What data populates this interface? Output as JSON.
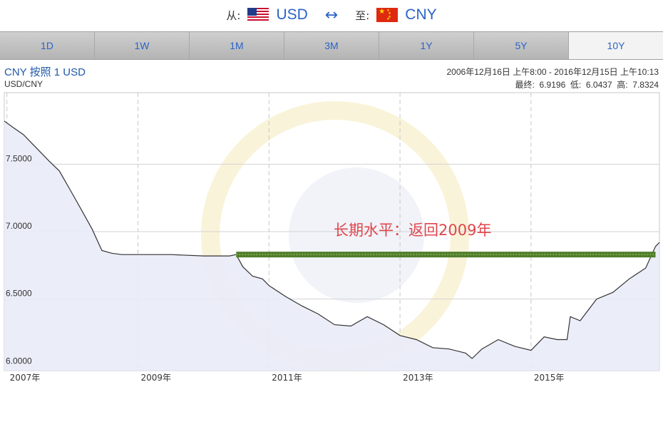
{
  "header": {
    "from_label": "从:",
    "from_currency": "USD",
    "to_label": "至:",
    "to_currency": "CNY"
  },
  "tabs": [
    "1D",
    "1W",
    "1M",
    "3M",
    "1Y",
    "5Y",
    "10Y"
  ],
  "active_tab": "10Y",
  "chart_header": {
    "title": "CNY 按照 1 USD",
    "pair": "USD/CNY",
    "date_range": "2006年12月16日 上午8:00 - 2016年12月15日 上午10:13",
    "stats": "最终:  6.9196  低:  6.0437  高:  7.8324"
  },
  "annotation": "长期水平：返回2009年",
  "colors": {
    "accent": "#2a63c7",
    "line": "#333333",
    "fill": "#e9ebf7",
    "annotation": "#e0454b",
    "level_band": "#4f7d2a"
  },
  "chart_data": {
    "type": "area",
    "title": "CNY 按照 1 USD",
    "xlabel": "",
    "ylabel": "",
    "xlim": [
      2006.96,
      2016.96
    ],
    "ylim": [
      5.97,
      8.03
    ],
    "y_ticks": [
      "7.5000",
      "7.0000",
      "6.5000",
      "6.0000"
    ],
    "x_ticks": [
      "2007年",
      "2009年",
      "2011年",
      "2013年",
      "2015年"
    ],
    "grid": true,
    "reference_line": {
      "value": 6.83,
      "from_x": 2010.5,
      "to_x": 2016.9
    },
    "series": [
      {
        "x": [
          2006.96,
          2007.1,
          2007.25,
          2007.45,
          2007.65,
          2007.8,
          2008.0,
          2008.15,
          2008.3,
          2008.45,
          2008.6,
          2008.75,
          2009.0,
          2009.5,
          2010.0,
          2010.4,
          2010.5,
          2010.6,
          2010.75,
          2010.9,
          2011.0,
          2011.25,
          2011.5,
          2011.75,
          2012.0,
          2012.25,
          2012.5,
          2012.75,
          2013.0,
          2013.25,
          2013.5,
          2013.75,
          2014.0,
          2014.1,
          2014.25,
          2014.5,
          2014.75,
          2015.0,
          2015.2,
          2015.4,
          2015.55,
          2015.6,
          2015.75,
          2016.0,
          2016.25,
          2016.5,
          2016.75,
          2016.9,
          2016.96
        ],
        "y": [
          7.82,
          7.77,
          7.72,
          7.62,
          7.52,
          7.45,
          7.28,
          7.15,
          7.02,
          6.86,
          6.84,
          6.83,
          6.83,
          6.83,
          6.82,
          6.82,
          6.83,
          6.74,
          6.67,
          6.65,
          6.6,
          6.52,
          6.45,
          6.39,
          6.31,
          6.3,
          6.37,
          6.31,
          6.23,
          6.2,
          6.14,
          6.13,
          6.1,
          6.06,
          6.13,
          6.2,
          6.15,
          6.12,
          6.22,
          6.2,
          6.2,
          6.37,
          6.34,
          6.5,
          6.55,
          6.65,
          6.73,
          6.89,
          6.92
        ]
      }
    ]
  }
}
